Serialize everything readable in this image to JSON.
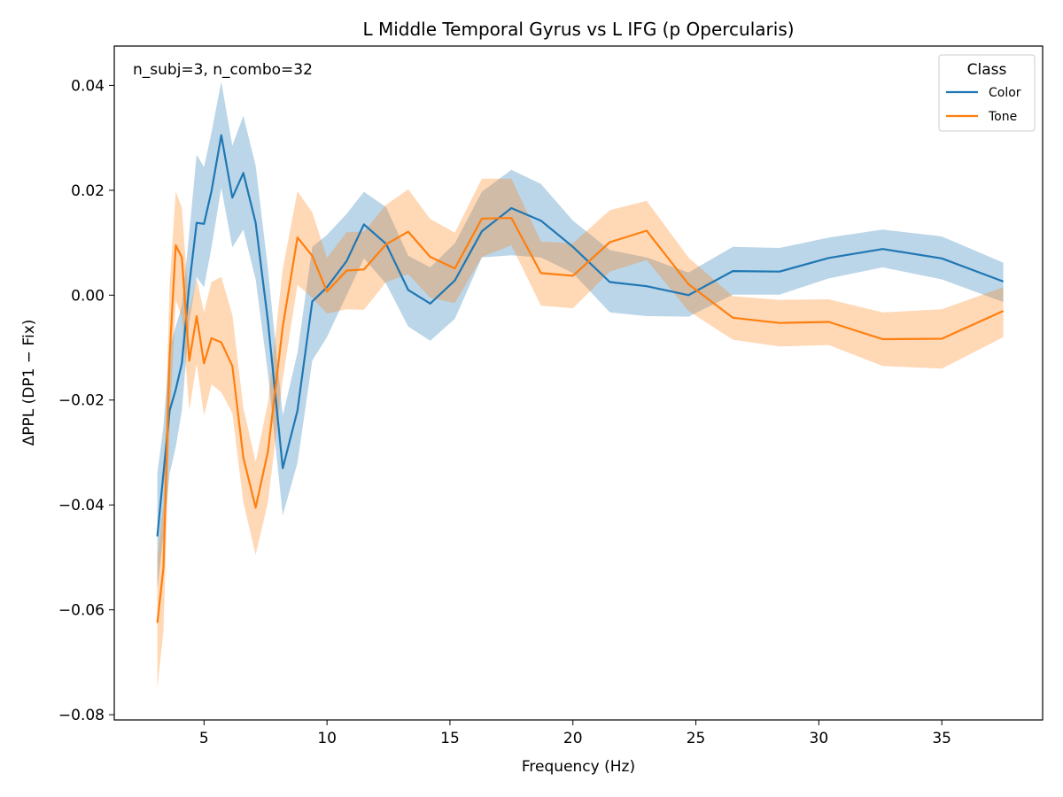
{
  "chart_data": {
    "type": "line",
    "title": "L Middle Temporal Gyrus vs L IFG (p Opercularis)",
    "xlabel": "Frequency (Hz)",
    "ylabel": "ΔPPL (DP1 − Fix)",
    "annotation": "n_subj=3, n_combo=32",
    "xlim": [
      1.35,
      39.1
    ],
    "ylim": [
      -0.081,
      0.0475
    ],
    "x_ticks": [
      5,
      10,
      15,
      20,
      25,
      30,
      35
    ],
    "x_tick_labels": [
      "5",
      "10",
      "15",
      "20",
      "25",
      "30",
      "35"
    ],
    "y_ticks": [
      0.04,
      0.02,
      0.0,
      -0.02,
      -0.04,
      -0.06,
      -0.08
    ],
    "y_tick_labels": [
      "0.04",
      "0.02",
      "0.00",
      "−0.02",
      "−0.04",
      "−0.06",
      "−0.08"
    ],
    "grid": false,
    "legend": {
      "title": "Class",
      "position": "top-right"
    },
    "x": [
      3.1,
      3.35,
      3.6,
      3.85,
      4.1,
      4.4,
      4.7,
      5.0,
      5.3,
      5.7,
      6.15,
      6.6,
      7.1,
      7.6,
      8.2,
      8.8,
      9.4,
      10.0,
      10.8,
      11.5,
      12.4,
      13.3,
      14.2,
      15.2,
      16.3,
      17.5,
      18.7,
      20.0,
      21.5,
      23.0,
      24.7,
      26.5,
      28.4,
      30.4,
      32.6,
      35.0,
      37.5
    ],
    "series": [
      {
        "name": "Color",
        "color": "#1f77b4",
        "values": [
          -0.046,
          -0.034,
          -0.022,
          -0.018,
          -0.013,
          0.002,
          0.0138,
          0.0136,
          0.0198,
          0.0305,
          0.0186,
          0.0233,
          0.0138,
          -0.005,
          -0.033,
          -0.022,
          -0.0012,
          0.0015,
          0.0065,
          0.0135,
          0.0098,
          0.001,
          -0.0016,
          0.0028,
          0.0122,
          0.0166,
          0.0142,
          0.0092,
          0.0025,
          0.0017,
          0.0,
          0.0046,
          0.0045,
          0.0071,
          0.0088,
          0.007,
          0.0026
        ],
        "lower": [
          -0.056,
          -0.046,
          -0.034,
          -0.029,
          -0.022,
          -0.005,
          0.0035,
          0.0015,
          0.009,
          0.0205,
          0.0091,
          0.0125,
          0.003,
          -0.015,
          -0.042,
          -0.032,
          -0.0125,
          -0.008,
          0.0,
          0.007,
          0.0022,
          -0.006,
          -0.0087,
          -0.0045,
          0.0072,
          0.0076,
          0.0072,
          0.0042,
          -0.0033,
          -0.004,
          -0.0041,
          0.0001,
          0.0001,
          0.0032,
          0.0053,
          0.003,
          -0.0013
        ],
        "upper": [
          -0.034,
          -0.025,
          -0.01,
          -0.006,
          -0.002,
          0.012,
          0.0268,
          0.0244,
          0.031,
          0.0407,
          0.0285,
          0.0342,
          0.0247,
          0.005,
          -0.023,
          -0.011,
          0.0092,
          0.0115,
          0.0155,
          0.0197,
          0.0168,
          0.0075,
          0.0053,
          0.0099,
          0.0197,
          0.0239,
          0.0212,
          0.0142,
          0.0086,
          0.0072,
          0.0043,
          0.0092,
          0.009,
          0.011,
          0.0125,
          0.0112,
          0.0062
        ]
      },
      {
        "name": "Tone",
        "color": "#ff7f0e",
        "values": [
          -0.0625,
          -0.052,
          -0.0115,
          0.0095,
          0.0072,
          -0.0125,
          -0.004,
          -0.013,
          -0.0082,
          -0.009,
          -0.0135,
          -0.031,
          -0.0405,
          -0.0298,
          -0.006,
          0.011,
          0.0075,
          0.0007,
          0.0047,
          0.0049,
          0.0097,
          0.0121,
          0.0073,
          0.0051,
          0.0146,
          0.0147,
          0.0042,
          0.0037,
          0.0101,
          0.0123,
          0.0021,
          -0.0043,
          -0.0053,
          -0.0051,
          -0.0084,
          -0.0083,
          -0.003
        ],
        "lower": [
          -0.075,
          -0.064,
          -0.025,
          -0.001,
          -0.004,
          -0.022,
          -0.013,
          -0.023,
          -0.017,
          -0.0185,
          -0.0225,
          -0.0395,
          -0.0495,
          -0.0395,
          -0.016,
          0.002,
          -0.0005,
          -0.0035,
          -0.0027,
          -0.0028,
          0.0025,
          0.004,
          -0.0005,
          -0.0015,
          0.0073,
          0.0095,
          -0.002,
          -0.0025,
          0.0045,
          0.0067,
          -0.003,
          -0.0085,
          -0.0098,
          -0.0095,
          -0.0135,
          -0.014,
          -0.008
        ],
        "upper": [
          -0.05,
          -0.04,
          0.002,
          0.0198,
          0.0167,
          -0.003,
          0.0032,
          -0.0033,
          0.0025,
          0.0035,
          -0.0038,
          -0.0215,
          -0.0318,
          -0.0205,
          0.005,
          0.0198,
          0.0158,
          0.0071,
          0.012,
          0.0121,
          0.0172,
          0.0202,
          0.0145,
          0.0119,
          0.0222,
          0.0222,
          0.0102,
          0.0099,
          0.0162,
          0.018,
          0.0072,
          -0.0002,
          -0.0009,
          -0.0008,
          -0.0033,
          -0.0027,
          0.0015
        ]
      }
    ]
  }
}
